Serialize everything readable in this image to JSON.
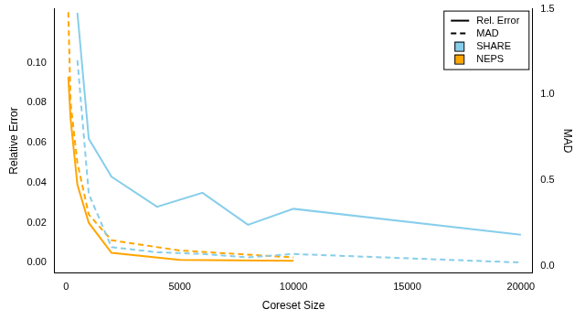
{
  "chart_data": {
    "type": "line",
    "x_label": "Coreset Size",
    "y_label": "Relative Error",
    "y2_label": "MAD",
    "xlim": [
      -500,
      20500
    ],
    "xticks": [
      0,
      5000,
      10000,
      15000,
      20000
    ],
    "ylim": [
      -0.005,
      0.127
    ],
    "yticks": [
      {
        "value": 0,
        "label": "0.00"
      },
      {
        "value": 0.02,
        "label": "0.02"
      },
      {
        "value": 0.04,
        "label": "0.04"
      },
      {
        "value": 0.06,
        "label": "0.06"
      },
      {
        "value": 0.08,
        "label": "0.08"
      },
      {
        "value": 0.1,
        "label": "0.10"
      }
    ],
    "y2lim": [
      -0.04,
      1.5
    ],
    "y2ticks": [
      {
        "value": 0,
        "label": "0.0"
      },
      0.5,
      {
        "value": 1,
        "label": "1.0"
      },
      1.5
    ],
    "grid": false,
    "legend": "top-right",
    "legend_items": [
      {
        "label": "Rel. Error",
        "line_style": "solid"
      },
      {
        "label": "MAD",
        "line_style": "dashed"
      },
      {
        "label": "SHARE",
        "color": "#87ceeb"
      },
      {
        "label": "NEPS",
        "color": "#ffa500"
      }
    ],
    "series": [
      {
        "name": "SHARE",
        "color": "#87ceeb",
        "line_style": "solid",
        "axis": "y",
        "x": [
          500,
          1000,
          2000,
          4000,
          6000,
          8000,
          10000,
          20000
        ],
        "values": [
          0.125,
          0.062,
          0.043,
          0.028,
          0.035,
          0.019,
          0.027,
          0.014
        ]
      },
      {
        "name": "SHARE",
        "color": "#87ceeb",
        "line_style": "dashed",
        "axis": "y2",
        "x": [
          500,
          1000,
          2000,
          4000,
          6000,
          8000,
          10000,
          20000
        ],
        "values": [
          1.2,
          0.42,
          0.11,
          0.08,
          0.07,
          0.05,
          0.07,
          0.02
        ]
      },
      {
        "name": "NEPS",
        "color": "#ffa500",
        "line_style": "solid",
        "axis": "y",
        "x": [
          100,
          200,
          500,
          1000,
          2000,
          5000,
          10000
        ],
        "values": [
          0.093,
          0.072,
          0.039,
          0.02,
          0.005,
          0.0015,
          0.001
        ]
      },
      {
        "name": "NEPS",
        "color": "#ffa500",
        "line_style": "dashed",
        "axis": "y2",
        "x": [
          100,
          200,
          500,
          1000,
          2000,
          5000,
          10000
        ],
        "values": [
          1.48,
          0.95,
          0.6,
          0.3,
          0.15,
          0.09,
          0.05
        ]
      }
    ]
  }
}
